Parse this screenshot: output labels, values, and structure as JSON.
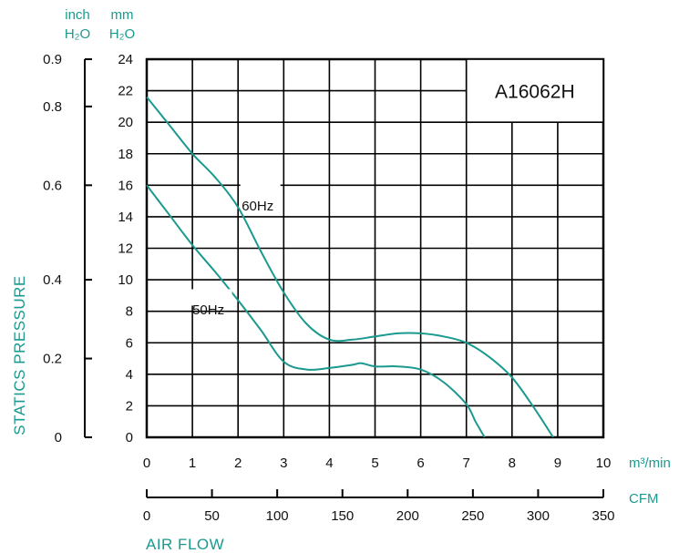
{
  "chart_data": {
    "type": "line",
    "model": "A16062H",
    "xlabel": "AIR FLOW",
    "ylabel": "STATICS PRESSURE",
    "x_axes": [
      {
        "unit": "m³/min",
        "range": [
          0,
          10
        ],
        "ticks": [
          "0",
          "1",
          "2",
          "3",
          "4",
          "5",
          "6",
          "7",
          "8",
          "9",
          "10"
        ]
      },
      {
        "unit": "CFM",
        "range": [
          0,
          350
        ],
        "ticks": [
          "0",
          "50",
          "100",
          "150",
          "200",
          "250",
          "300",
          "350"
        ]
      }
    ],
    "y_axes": [
      {
        "unit_line1": "mm",
        "unit_line2": "H₂O",
        "range": [
          0,
          24
        ],
        "ticks": [
          "0",
          "2",
          "4",
          "6",
          "8",
          "10",
          "12",
          "14",
          "16",
          "18",
          "20",
          "22",
          "24"
        ]
      },
      {
        "unit_line1": "inch",
        "unit_line2": "H₂O",
        "range": [
          0,
          0.9
        ],
        "ticks": [
          {
            "label": "0",
            "mm": 0
          },
          {
            "label": "0.2",
            "mm": 5
          },
          {
            "label": "0.4",
            "mm": 10
          },
          {
            "label": "0.6",
            "mm": 16
          },
          {
            "label": "0.8",
            "mm": 21
          },
          {
            "label": "0.9",
            "mm": 24
          }
        ]
      }
    ],
    "grid": true,
    "series": [
      {
        "name": "60Hz",
        "color": "#1a9a8e",
        "x": [
          0,
          0.5,
          1.0,
          1.5,
          2.0,
          2.5,
          3.0,
          3.5,
          4.0,
          4.5,
          5.0,
          5.5,
          6.0,
          6.5,
          7.0,
          7.5,
          8.0,
          8.5,
          8.9
        ],
        "y": [
          21.6,
          19.8,
          18.0,
          16.5,
          14.6,
          11.8,
          9.2,
          7.2,
          6.2,
          6.2,
          6.4,
          6.6,
          6.6,
          6.4,
          6.0,
          5.1,
          3.8,
          1.8,
          0
        ]
      },
      {
        "name": "50Hz",
        "color": "#1a9a8e",
        "x": [
          0,
          0.5,
          1.0,
          1.5,
          2.0,
          2.5,
          3.0,
          3.5,
          4.0,
          4.5,
          4.7,
          5.0,
          5.5,
          6.0,
          6.5,
          7.0,
          7.2,
          7.4
        ],
        "y": [
          16.0,
          14.1,
          12.2,
          10.5,
          8.7,
          6.8,
          4.8,
          4.3,
          4.4,
          4.6,
          4.7,
          4.5,
          4.5,
          4.3,
          3.5,
          2.1,
          1.0,
          0
        ]
      }
    ]
  }
}
